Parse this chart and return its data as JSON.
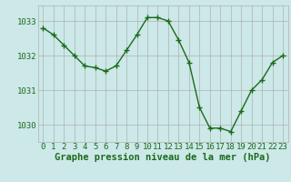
{
  "x": [
    0,
    1,
    2,
    3,
    4,
    5,
    6,
    7,
    8,
    9,
    10,
    11,
    12,
    13,
    14,
    15,
    16,
    17,
    18,
    19,
    20,
    21,
    22,
    23
  ],
  "y": [
    1032.8,
    1032.6,
    1032.3,
    1032.0,
    1031.7,
    1031.65,
    1031.55,
    1031.7,
    1032.15,
    1032.6,
    1033.1,
    1033.1,
    1033.0,
    1032.45,
    1031.8,
    1030.5,
    1029.9,
    1029.9,
    1029.8,
    1030.4,
    1031.0,
    1031.3,
    1031.8,
    1032.0
  ],
  "line_color": "#1a6b1a",
  "marker_color": "#1a6b1a",
  "bg_color": "#cce8e8",
  "grid_color": "#b0b0b0",
  "xlabel": "Graphe pression niveau de la mer (hPa)",
  "xlabel_color": "#1a6b1a",
  "ylabel_ticks": [
    1030,
    1031,
    1032,
    1033
  ],
  "xlim": [
    -0.5,
    23.5
  ],
  "ylim": [
    1029.5,
    1033.45
  ],
  "xticks": [
    0,
    1,
    2,
    3,
    4,
    5,
    6,
    7,
    8,
    9,
    10,
    11,
    12,
    13,
    14,
    15,
    16,
    17,
    18,
    19,
    20,
    21,
    22,
    23
  ],
  "tick_fontsize": 6.5,
  "xlabel_fontsize": 7.5
}
